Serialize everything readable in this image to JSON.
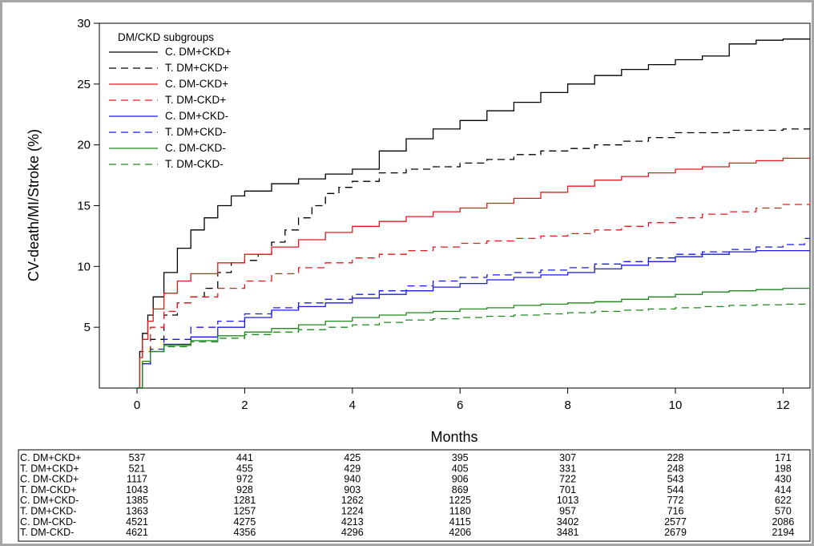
{
  "chart_data": {
    "type": "line",
    "ylabel": "CV-death/MI/Stroke (%)",
    "xlabel": "Months",
    "xlim": [
      -0.7,
      12.5
    ],
    "ylim": [
      0,
      30
    ],
    "x_ticks": [
      0,
      2,
      4,
      6,
      8,
      10,
      12
    ],
    "y_ticks": [
      5,
      10,
      15,
      20,
      25,
      30
    ],
    "grid": false,
    "legend": {
      "title": "DM/CKD subgroups",
      "position": "top-left"
    },
    "series": [
      {
        "name": "C. DM+CKD+",
        "color": "#000000",
        "dash": "solid",
        "points": [
          [
            0,
            0
          ],
          [
            0.05,
            3
          ],
          [
            0.1,
            4.5
          ],
          [
            0.2,
            6
          ],
          [
            0.3,
            7.5
          ],
          [
            0.5,
            9.5
          ],
          [
            0.75,
            11.5
          ],
          [
            1,
            13
          ],
          [
            1.25,
            14
          ],
          [
            1.5,
            15
          ],
          [
            1.75,
            15.8
          ],
          [
            2,
            16.2
          ],
          [
            2.5,
            16.8
          ],
          [
            3,
            17.2
          ],
          [
            3.5,
            17.6
          ],
          [
            4,
            18
          ],
          [
            4.5,
            19.5
          ],
          [
            5,
            20.5
          ],
          [
            5.5,
            21.3
          ],
          [
            6,
            22
          ],
          [
            6.5,
            22.8
          ],
          [
            7,
            23.5
          ],
          [
            7.5,
            24.3
          ],
          [
            8,
            25
          ],
          [
            8.5,
            25.7
          ],
          [
            9,
            26.2
          ],
          [
            9.5,
            26.6
          ],
          [
            10,
            27
          ],
          [
            10.5,
            27.3
          ],
          [
            11,
            28.3
          ],
          [
            11.5,
            28.6
          ],
          [
            12,
            28.7
          ],
          [
            12.5,
            28.7
          ]
        ]
      },
      {
        "name": "T. DM+CKD+",
        "color": "#000000",
        "dash": "dashed",
        "points": [
          [
            0,
            0
          ],
          [
            0.1,
            2
          ],
          [
            0.25,
            4
          ],
          [
            0.5,
            6
          ],
          [
            0.75,
            7
          ],
          [
            1,
            7.5
          ],
          [
            1.25,
            8.2
          ],
          [
            1.5,
            9.5
          ],
          [
            1.75,
            10.3
          ],
          [
            2,
            10.5
          ],
          [
            2.25,
            11
          ],
          [
            2.5,
            12
          ],
          [
            2.75,
            13
          ],
          [
            3,
            14
          ],
          [
            3.25,
            15
          ],
          [
            3.5,
            16
          ],
          [
            3.75,
            16.5
          ],
          [
            4,
            17
          ],
          [
            4.5,
            17.7
          ],
          [
            5,
            18
          ],
          [
            5.5,
            18.2
          ],
          [
            6,
            18.5
          ],
          [
            6.5,
            18.8
          ],
          [
            7,
            19.2
          ],
          [
            7.5,
            19.5
          ],
          [
            8,
            19.7
          ],
          [
            8.5,
            20
          ],
          [
            9,
            20.3
          ],
          [
            9.5,
            20.6
          ],
          [
            10,
            21
          ],
          [
            11,
            21.2
          ],
          [
            12,
            21.3
          ],
          [
            12.5,
            21.3
          ]
        ]
      },
      {
        "name": "C. DM-CKD+",
        "color": "#e8191b",
        "dash": "solid",
        "points": [
          [
            0,
            0
          ],
          [
            0.05,
            2.5
          ],
          [
            0.1,
            4
          ],
          [
            0.2,
            5.5
          ],
          [
            0.3,
            6.5
          ],
          [
            0.5,
            7.8
          ],
          [
            0.75,
            8.8
          ],
          [
            1,
            9.4
          ],
          [
            1.5,
            10.3
          ],
          [
            2,
            11
          ],
          [
            2.5,
            11.6
          ],
          [
            3,
            12.2
          ],
          [
            3.5,
            12.8
          ],
          [
            4,
            13.3
          ],
          [
            4.5,
            13.7
          ],
          [
            5,
            14.1
          ],
          [
            5.5,
            14.5
          ],
          [
            6,
            14.8
          ],
          [
            6.5,
            15.2
          ],
          [
            7,
            15.6
          ],
          [
            7.5,
            16.1
          ],
          [
            8,
            16.6
          ],
          [
            8.5,
            17.1
          ],
          [
            9,
            17.4
          ],
          [
            9.5,
            17.7
          ],
          [
            10,
            18
          ],
          [
            10.5,
            18.2
          ],
          [
            11,
            18.5
          ],
          [
            11.5,
            18.7
          ],
          [
            12,
            18.9
          ],
          [
            12.5,
            18.9
          ]
        ]
      },
      {
        "name": "T. DM-CKD+",
        "color": "#e8191b",
        "dash": "dashed",
        "points": [
          [
            0,
            0
          ],
          [
            0.1,
            3
          ],
          [
            0.25,
            5
          ],
          [
            0.5,
            6.3
          ],
          [
            0.75,
            7
          ],
          [
            1,
            7.5
          ],
          [
            1.5,
            8.2
          ],
          [
            2,
            8.8
          ],
          [
            2.5,
            9.4
          ],
          [
            3,
            9.9
          ],
          [
            3.5,
            10.3
          ],
          [
            4,
            10.7
          ],
          [
            4.5,
            11
          ],
          [
            5,
            11.3
          ],
          [
            5.5,
            11.6
          ],
          [
            6,
            11.9
          ],
          [
            6.5,
            12.1
          ],
          [
            7,
            12.3
          ],
          [
            7.5,
            12.5
          ],
          [
            8,
            12.7
          ],
          [
            8.5,
            13
          ],
          [
            9,
            13.3
          ],
          [
            9.5,
            13.6
          ],
          [
            10,
            14
          ],
          [
            10.5,
            14.3
          ],
          [
            11,
            14.5
          ],
          [
            11.5,
            14.8
          ],
          [
            12,
            15.1
          ],
          [
            12.5,
            15.3
          ]
        ]
      },
      {
        "name": "C. DM+CKD-",
        "color": "#1a1aee",
        "dash": "solid",
        "points": [
          [
            0,
            0
          ],
          [
            0.1,
            2
          ],
          [
            0.25,
            3
          ],
          [
            0.5,
            3.6
          ],
          [
            1,
            4.2
          ],
          [
            1.5,
            5
          ],
          [
            2,
            5.8
          ],
          [
            2.5,
            6.4
          ],
          [
            3,
            6.7
          ],
          [
            3.5,
            7
          ],
          [
            4,
            7.4
          ],
          [
            4.5,
            7.7
          ],
          [
            5,
            8
          ],
          [
            5.5,
            8.3
          ],
          [
            6,
            8.6
          ],
          [
            6.5,
            8.9
          ],
          [
            7,
            9.1
          ],
          [
            7.5,
            9.3
          ],
          [
            8,
            9.5
          ],
          [
            8.5,
            9.8
          ],
          [
            9,
            10.1
          ],
          [
            9.5,
            10.4
          ],
          [
            10,
            10.8
          ],
          [
            10.5,
            11
          ],
          [
            11,
            11.2
          ],
          [
            11.5,
            11.3
          ],
          [
            12,
            11.3
          ],
          [
            12.5,
            11.3
          ]
        ]
      },
      {
        "name": "T. DM+CKD-",
        "color": "#1a1aee",
        "dash": "dashed",
        "points": [
          [
            0,
            0
          ],
          [
            0.1,
            2
          ],
          [
            0.25,
            3.2
          ],
          [
            0.5,
            4
          ],
          [
            1,
            5
          ],
          [
            1.5,
            5.5
          ],
          [
            2,
            6.1
          ],
          [
            2.5,
            6.6
          ],
          [
            3,
            7
          ],
          [
            3.5,
            7.3
          ],
          [
            4,
            7.7
          ],
          [
            4.5,
            8
          ],
          [
            5,
            8.4
          ],
          [
            5.5,
            8.8
          ],
          [
            6,
            9.1
          ],
          [
            6.5,
            9.3
          ],
          [
            7,
            9.5
          ],
          [
            7.5,
            9.7
          ],
          [
            8,
            9.9
          ],
          [
            8.5,
            10.2
          ],
          [
            9,
            10.4
          ],
          [
            9.5,
            10.7
          ],
          [
            10,
            11
          ],
          [
            10.5,
            11.2
          ],
          [
            11,
            11.4
          ],
          [
            11.5,
            11.6
          ],
          [
            12,
            11.8
          ],
          [
            12.4,
            12.3
          ],
          [
            12.5,
            12.3
          ]
        ]
      },
      {
        "name": "C. DM-CKD-",
        "color": "#1e8a1e",
        "dash": "solid",
        "points": [
          [
            0,
            0
          ],
          [
            0.1,
            2.2
          ],
          [
            0.25,
            3
          ],
          [
            0.5,
            3.5
          ],
          [
            1,
            3.9
          ],
          [
            1.5,
            4.3
          ],
          [
            2,
            4.6
          ],
          [
            2.5,
            4.9
          ],
          [
            3,
            5.2
          ],
          [
            3.5,
            5.5
          ],
          [
            4,
            5.8
          ],
          [
            4.5,
            6
          ],
          [
            5,
            6.2
          ],
          [
            5.5,
            6.3
          ],
          [
            6,
            6.5
          ],
          [
            6.5,
            6.6
          ],
          [
            7,
            6.8
          ],
          [
            7.5,
            6.9
          ],
          [
            8,
            7
          ],
          [
            8.5,
            7.1
          ],
          [
            9,
            7.3
          ],
          [
            9.5,
            7.5
          ],
          [
            10,
            7.7
          ],
          [
            10.5,
            7.9
          ],
          [
            11,
            8
          ],
          [
            11.5,
            8.1
          ],
          [
            12,
            8.2
          ],
          [
            12.5,
            8.3
          ]
        ]
      },
      {
        "name": "T. DM-CKD-",
        "color": "#1e8a1e",
        "dash": "dashed",
        "points": [
          [
            0,
            0
          ],
          [
            0.1,
            2.2
          ],
          [
            0.25,
            3
          ],
          [
            0.5,
            3.4
          ],
          [
            1,
            3.8
          ],
          [
            1.5,
            4.1
          ],
          [
            2,
            4.4
          ],
          [
            2.5,
            4.6
          ],
          [
            3,
            4.8
          ],
          [
            3.5,
            5
          ],
          [
            4,
            5.2
          ],
          [
            4.5,
            5.4
          ],
          [
            5,
            5.6
          ],
          [
            5.5,
            5.7
          ],
          [
            6,
            5.8
          ],
          [
            6.5,
            5.9
          ],
          [
            7,
            6
          ],
          [
            7.5,
            6.1
          ],
          [
            8,
            6.2
          ],
          [
            8.5,
            6.3
          ],
          [
            9,
            6.4
          ],
          [
            9.5,
            6.5
          ],
          [
            10,
            6.6
          ],
          [
            10.5,
            6.7
          ],
          [
            11,
            6.8
          ],
          [
            11.5,
            6.85
          ],
          [
            12,
            6.9
          ],
          [
            12.5,
            6.9
          ]
        ]
      }
    ],
    "risk_table": {
      "times": [
        0,
        2,
        4,
        6,
        8,
        10,
        12
      ],
      "rows": [
        {
          "label": "C. DM+CKD+",
          "values": [
            "537",
            "441",
            "425",
            "395",
            "307",
            "228",
            "171"
          ]
        },
        {
          "label": "T. DM+CKD+",
          "values": [
            "521",
            "455",
            "429",
            "405",
            "331",
            "248",
            "198"
          ]
        },
        {
          "label": "C. DM-CKD+",
          "values": [
            "1117",
            "972",
            "940",
            "906",
            "722",
            "543",
            "430"
          ]
        },
        {
          "label": "T. DM-CKD+",
          "values": [
            "1043",
            "928",
            "903",
            "869",
            "701",
            "544",
            "414"
          ]
        },
        {
          "label": "C. DM+CKD-",
          "values": [
            "1385",
            "1281",
            "1262",
            "1225",
            "1013",
            "772",
            "622"
          ]
        },
        {
          "label": "T. DM+CKD-",
          "values": [
            "1363",
            "1257",
            "1224",
            "1180",
            "957",
            "716",
            "570"
          ]
        },
        {
          "label": "C. DM-CKD-",
          "values": [
            "4521",
            "4275",
            "4213",
            "4115",
            "3402",
            "2577",
            "2086"
          ]
        },
        {
          "label": "T. DM-CKD-",
          "values": [
            "4621",
            "4356",
            "4296",
            "4206",
            "3481",
            "2679",
            "2194"
          ]
        }
      ]
    }
  }
}
